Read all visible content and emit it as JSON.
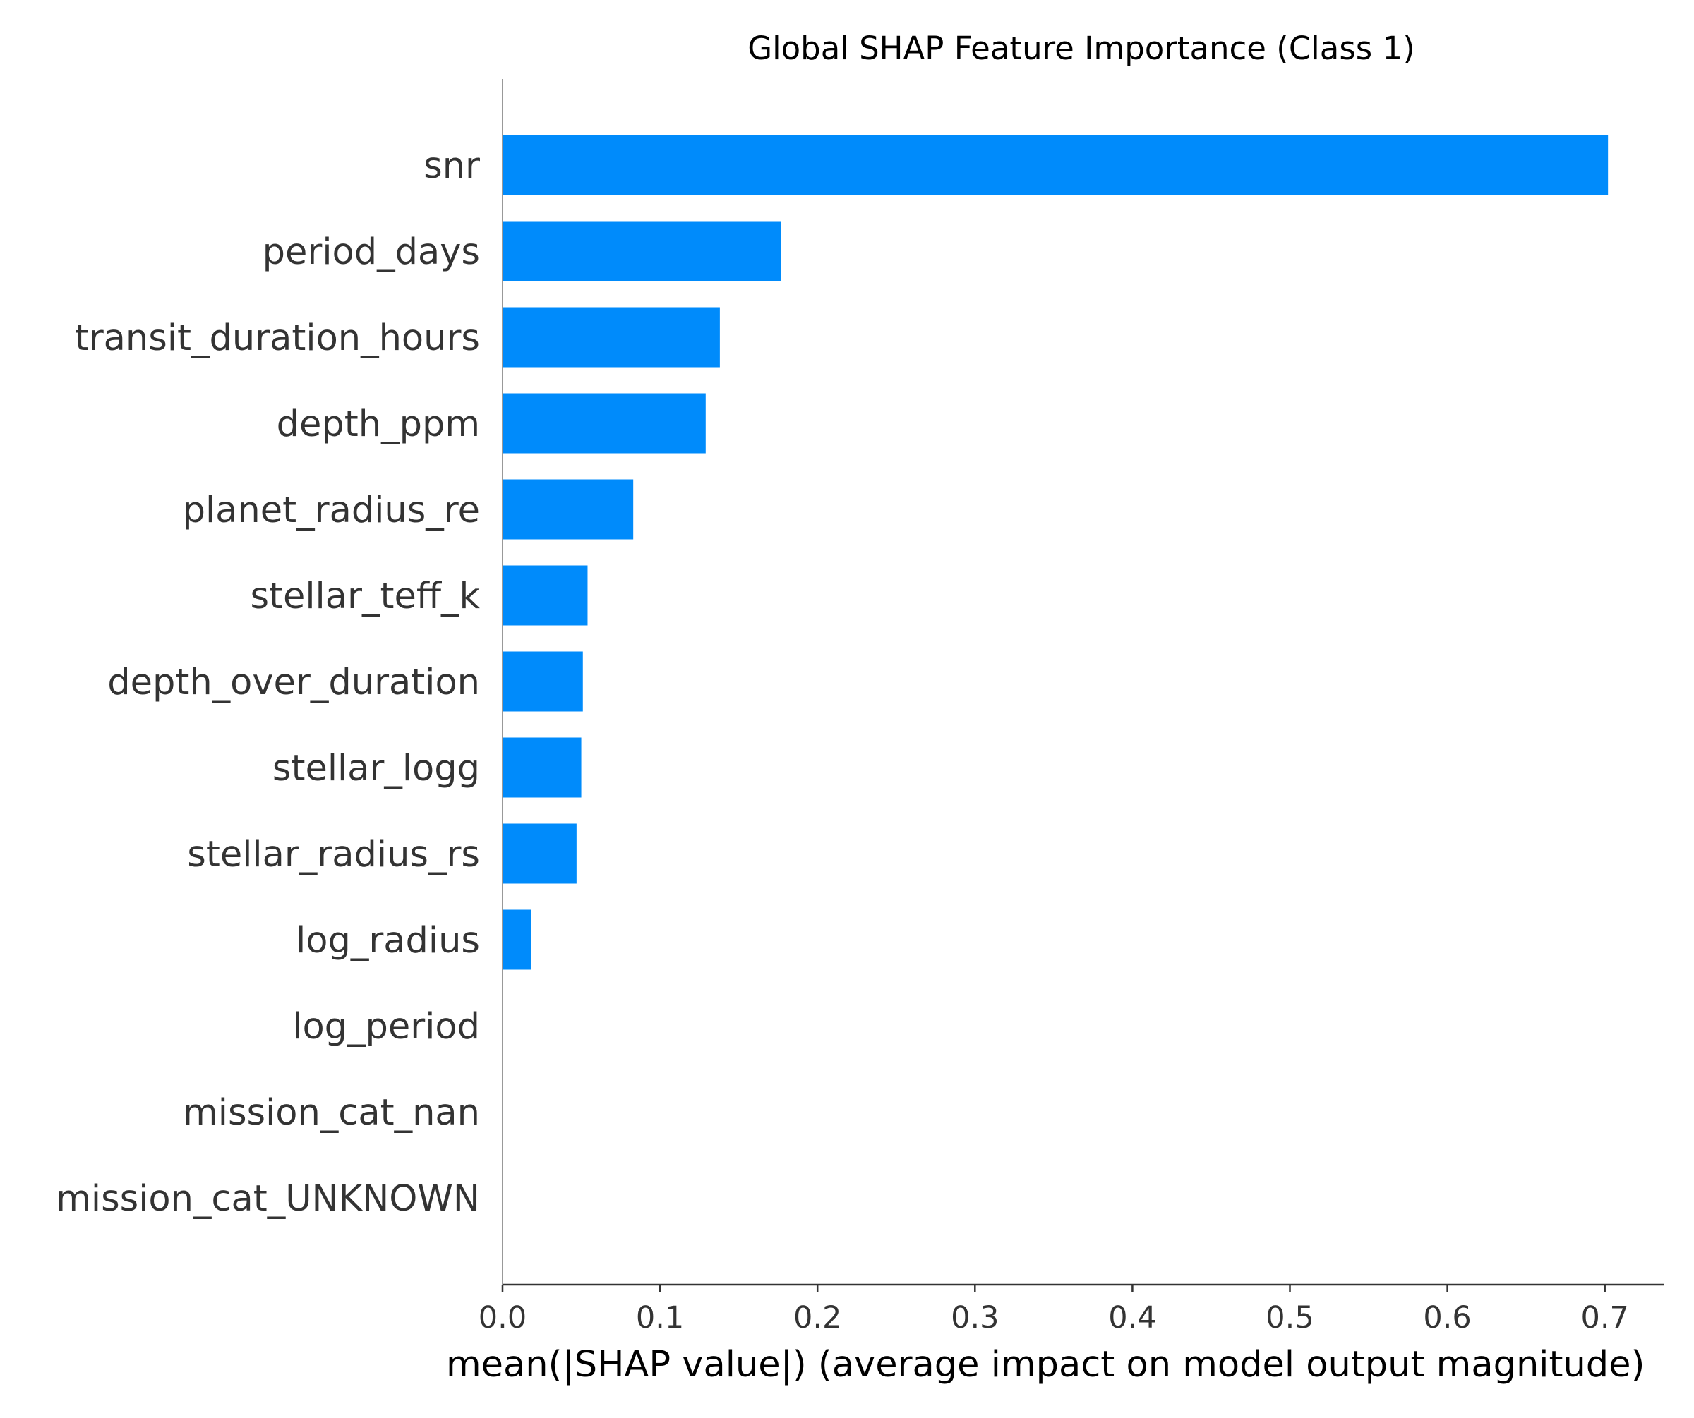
{
  "chart_data": {
    "type": "bar",
    "orientation": "horizontal",
    "title": "Global SHAP Feature Importance (Class 1)",
    "xlabel": "mean(|SHAP value|) (average impact on model output magnitude)",
    "ylabel": "",
    "xlim": [
      0,
      0.738
    ],
    "xticks": [
      "0.0",
      "0.1",
      "0.2",
      "0.3",
      "0.4",
      "0.5",
      "0.6",
      "0.7"
    ],
    "bar_color": "#008bfb",
    "categories": [
      "snr",
      "period_days",
      "transit_duration_hours",
      "depth_ppm",
      "planet_radius_re",
      "stellar_teff_k",
      "depth_over_duration",
      "stellar_logg",
      "stellar_radius_rs",
      "log_radius",
      "log_period",
      "mission_cat_nan",
      "mission_cat_UNKNOWN"
    ],
    "values": [
      0.702,
      0.177,
      0.138,
      0.129,
      0.083,
      0.054,
      0.051,
      0.05,
      0.047,
      0.018,
      0.0,
      0.0,
      0.0
    ]
  }
}
